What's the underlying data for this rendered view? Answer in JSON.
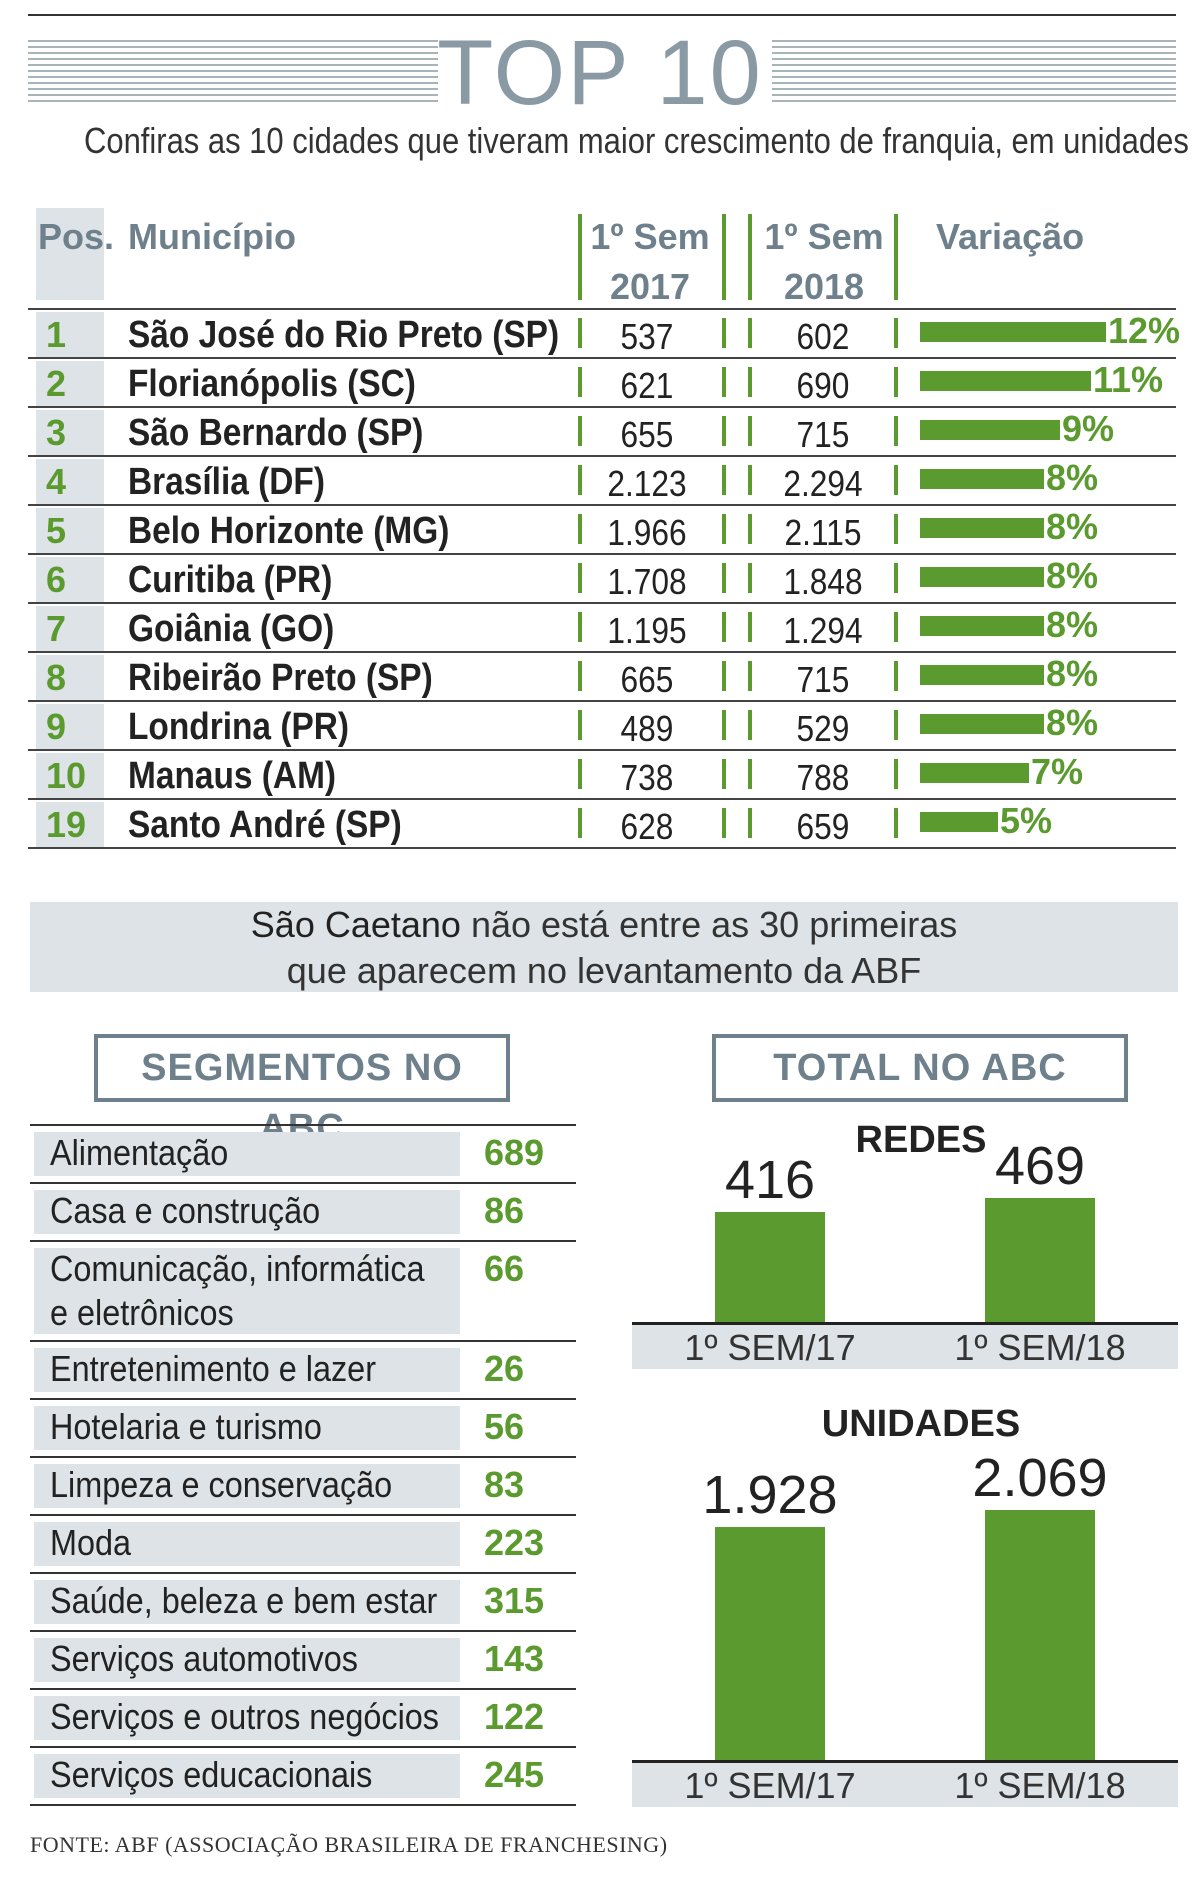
{
  "header": {
    "title": "TOP 10",
    "subtitle": "Confiras as 10 cidades que tiveram maior crescimento de franquia, em unidades"
  },
  "colors": {
    "accent_green": "#5a9a2e",
    "header_gray": "#6f808d",
    "panel_bg": "#dde3e6"
  },
  "chart_data": [
    {
      "type": "table",
      "columns": [
        "Pos.",
        "Município",
        "1º Sem 2017",
        "1º Sem 2018",
        "Variação"
      ],
      "rows": [
        {
          "pos": "1",
          "city": "São José do Rio Preto (SP)",
          "v2017": "537",
          "v2018": "602",
          "var": "12%",
          "var_value": 12
        },
        {
          "pos": "2",
          "city": "Florianópolis (SC)",
          "v2017": "621",
          "v2018": "690",
          "var": "11%",
          "var_value": 11
        },
        {
          "pos": "3",
          "city": "São Bernardo (SP)",
          "v2017": "655",
          "v2018": "715",
          "var": "9%",
          "var_value": 9
        },
        {
          "pos": "4",
          "city": "Brasília (DF)",
          "v2017": "2.123",
          "v2018": "2.294",
          "var": "8%",
          "var_value": 8
        },
        {
          "pos": "5",
          "city": "Belo Horizonte (MG)",
          "v2017": "1.966",
          "v2018": "2.115",
          "var": "8%",
          "var_value": 8
        },
        {
          "pos": "6",
          "city": "Curitiba (PR)",
          "v2017": "1.708",
          "v2018": "1.848",
          "var": "8%",
          "var_value": 8
        },
        {
          "pos": "7",
          "city": "Goiânia (GO)",
          "v2017": "1.195",
          "v2018": "1.294",
          "var": "8%",
          "var_value": 8
        },
        {
          "pos": "8",
          "city": "Ribeirão Preto (SP)",
          "v2017": "665",
          "v2018": "715",
          "var": "8%",
          "var_value": 8
        },
        {
          "pos": "9",
          "city": "Londrina (PR)",
          "v2017": "489",
          "v2018": "529",
          "var": "8%",
          "var_value": 8
        },
        {
          "pos": "10",
          "city": "Manaus (AM)",
          "v2017": "738",
          "v2018": "788",
          "var": "7%",
          "var_value": 7
        },
        {
          "pos": "19",
          "city": "Santo André (SP)",
          "v2017": "628",
          "v2018": "659",
          "var": "5%",
          "var_value": 5
        }
      ]
    },
    {
      "type": "table",
      "title": "SEGMENTOS NO ABC",
      "rows": [
        {
          "label": "Alimentação",
          "value": "689"
        },
        {
          "label": "Casa e construção",
          "value": "86"
        },
        {
          "label": "Comunicação, informática",
          "label2": "e eletrônicos",
          "value": "66"
        },
        {
          "label": "Entretenimento e lazer",
          "value": "26"
        },
        {
          "label": "Hotelaria e turismo",
          "value": "56"
        },
        {
          "label": "Limpeza e conservação",
          "value": "83"
        },
        {
          "label": "Moda",
          "value": "223"
        },
        {
          "label": "Saúde, beleza e bem estar",
          "value": "315"
        },
        {
          "label": "Serviços automotivos",
          "value": "143"
        },
        {
          "label": "Serviços e outros negócios",
          "value": "122"
        },
        {
          "label": "Serviços educacionais",
          "value": "245"
        }
      ]
    },
    {
      "type": "bar",
      "title": "REDES",
      "categories": [
        "1º SEM/17",
        "1º SEM/18"
      ],
      "values": [
        416,
        469
      ],
      "value_labels": [
        "416",
        "469"
      ]
    },
    {
      "type": "bar",
      "title": "UNIDADES",
      "categories": [
        "1º SEM/17",
        "1º SEM/18"
      ],
      "values": [
        1928,
        2069
      ],
      "value_labels": [
        "1.928",
        "2.069"
      ]
    }
  ],
  "table_header": {
    "pos": "Pos.",
    "city": "Município",
    "sem2017_line1": "1º Sem",
    "sem2017_line2": "2017",
    "sem2018_line1": "1º Sem",
    "sem2018_line2": "2018",
    "variation": "Variação"
  },
  "note": {
    "bold": "São Caetano",
    "line1_rest": " não está entre as 30 primeiras",
    "line2": "que aparecem no levantamento da ABF"
  },
  "totals": {
    "title": "TOTAL NO ABC"
  },
  "source": "FONTE: ABF (ASSOCIAÇÃO BRASILEIRA DE FRANCHESING)"
}
